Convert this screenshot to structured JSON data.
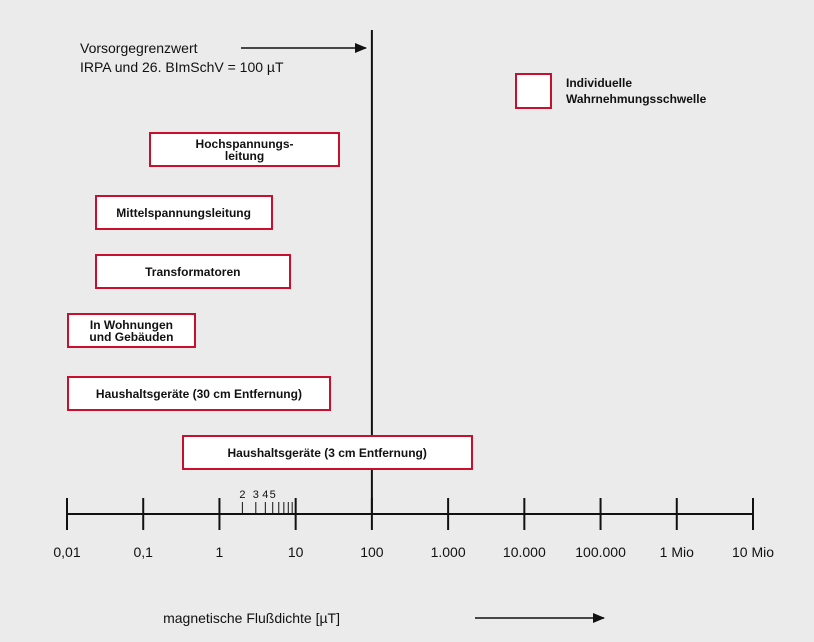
{
  "chart_data": {
    "type": "range",
    "annotation": "Vorsorgegrenzwert\nIRPA und 26. BImSchV = 100 µT",
    "reference_value": 100,
    "legend_label": "Individuelle\nWahrnehmungsschwelle",
    "color": "#c8102e",
    "categories": [
      "Hochspannungs-\nleitung",
      "Mittelspannungsleitung",
      "Transformatoren",
      "In Wohnungen\nund Gebäuden",
      "Haushaltsgeräte (30 cm Entfernung)",
      "Haushaltsgeräte (3 cm Entfernung)"
    ],
    "low": [
      0.12,
      0.023,
      0.023,
      0.01,
      0.01,
      0.32
    ],
    "high": [
      38,
      5,
      8.7,
      0.49,
      29,
      2100
    ],
    "x_label": "magnetische Flußdichte [µT]",
    "xscale": "log",
    "xlim": [
      0.01,
      10000000
    ],
    "xticks": [
      {
        "value": 0.01,
        "label": "0,01"
      },
      {
        "value": 0.1,
        "label": "0,1"
      },
      1,
      10,
      100,
      {
        "value": 1000,
        "label": "1.000"
      },
      {
        "value": 10000,
        "label": "10.000"
      },
      {
        "value": 100000,
        "label": "100.000"
      },
      {
        "value": 1000000,
        "label": "1 Mio"
      },
      {
        "value": 10000000,
        "label": "10 Mio"
      }
    ],
    "labeled_minor_ticks": [
      2,
      3,
      4,
      5
    ],
    "minor_ticks": [
      6,
      7,
      8,
      9
    ]
  }
}
